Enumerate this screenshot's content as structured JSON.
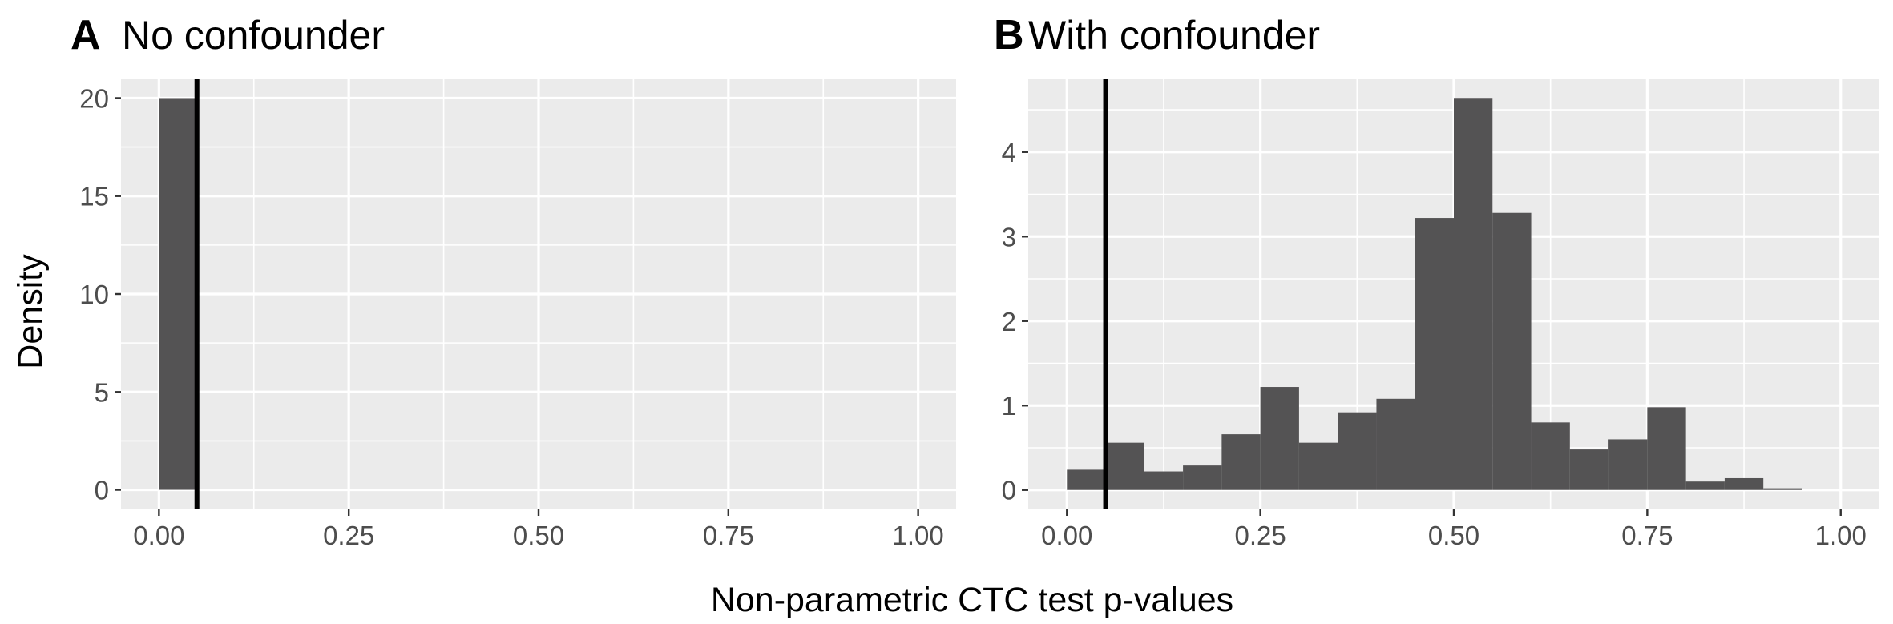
{
  "xlabel": "Non-parametric CTC test p-values",
  "ylabel": "Density",
  "chart_data": [
    {
      "type": "bar",
      "tag": "A",
      "title": "No confounder",
      "xlim": [
        -0.05,
        1.05
      ],
      "ylim": [
        -1.0,
        21.0
      ],
      "xbreaks": [
        0.0,
        0.25,
        0.5,
        0.75,
        1.0
      ],
      "xtick_labels": [
        "0.00",
        "0.25",
        "0.50",
        "0.75",
        "1.00"
      ],
      "ybreaks": [
        0,
        5,
        10,
        15,
        20
      ],
      "ytick_labels": [
        "0",
        "5",
        "10",
        "15",
        "20"
      ],
      "bin_width": 0.05,
      "bins": [
        {
          "x0": 0.0,
          "x1": 0.05,
          "density": 20.0
        }
      ],
      "vline": 0.05
    },
    {
      "type": "bar",
      "tag": "B",
      "title": "With confounder",
      "xlim": [
        -0.05,
        1.05
      ],
      "ylim": [
        -0.23,
        4.87
      ],
      "xbreaks": [
        0.0,
        0.25,
        0.5,
        0.75,
        1.0
      ],
      "xtick_labels": [
        "0.00",
        "0.25",
        "0.50",
        "0.75",
        "1.00"
      ],
      "ybreaks": [
        0,
        1,
        2,
        3,
        4
      ],
      "ytick_labels": [
        "0",
        "1",
        "2",
        "3",
        "4"
      ],
      "bin_width": 0.05,
      "bins": [
        {
          "x0": 0.0,
          "x1": 0.05,
          "density": 0.24
        },
        {
          "x0": 0.05,
          "x1": 0.1,
          "density": 0.56
        },
        {
          "x0": 0.1,
          "x1": 0.15,
          "density": 0.22
        },
        {
          "x0": 0.15,
          "x1": 0.2,
          "density": 0.29
        },
        {
          "x0": 0.2,
          "x1": 0.25,
          "density": 0.66
        },
        {
          "x0": 0.25,
          "x1": 0.3,
          "density": 1.22
        },
        {
          "x0": 0.3,
          "x1": 0.35,
          "density": 0.56
        },
        {
          "x0": 0.35,
          "x1": 0.4,
          "density": 0.92
        },
        {
          "x0": 0.4,
          "x1": 0.45,
          "density": 1.08
        },
        {
          "x0": 0.45,
          "x1": 0.5,
          "density": 3.22
        },
        {
          "x0": 0.5,
          "x1": 0.55,
          "density": 4.64
        },
        {
          "x0": 0.55,
          "x1": 0.6,
          "density": 3.28
        },
        {
          "x0": 0.6,
          "x1": 0.65,
          "density": 0.8
        },
        {
          "x0": 0.65,
          "x1": 0.7,
          "density": 0.48
        },
        {
          "x0": 0.7,
          "x1": 0.75,
          "density": 0.6
        },
        {
          "x0": 0.75,
          "x1": 0.8,
          "density": 0.98
        },
        {
          "x0": 0.8,
          "x1": 0.85,
          "density": 0.1
        },
        {
          "x0": 0.85,
          "x1": 0.9,
          "density": 0.14
        },
        {
          "x0": 0.9,
          "x1": 0.95,
          "density": 0.02
        }
      ],
      "vline": 0.05
    }
  ]
}
